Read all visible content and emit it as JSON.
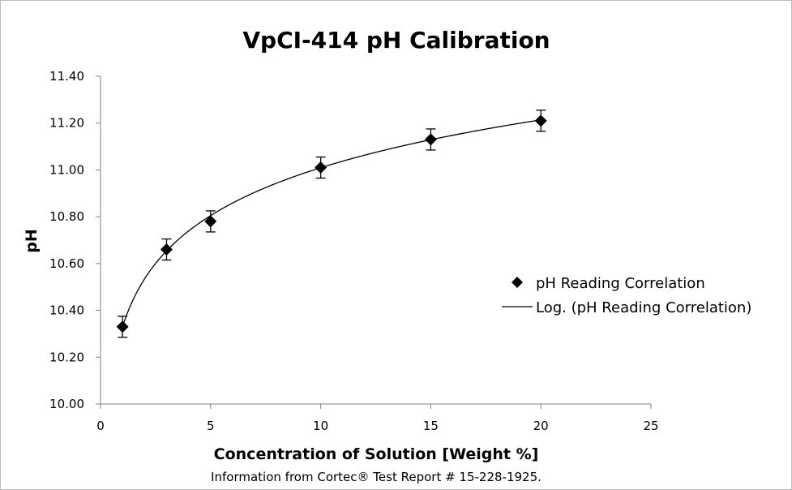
{
  "chart_data": {
    "type": "scatter",
    "title": "VpCI-414 pH Calibration",
    "xlabel": "Concentration of Solution [Weight %]",
    "ylabel": "pH",
    "xlim": [
      0,
      25
    ],
    "ylim": [
      10.0,
      11.4
    ],
    "x_ticks": [
      0,
      5,
      10,
      15,
      20,
      25
    ],
    "x_tick_labels": [
      "0",
      "5",
      "10",
      "15",
      "20",
      "25"
    ],
    "y_ticks": [
      10.0,
      10.2,
      10.4,
      10.6,
      10.8,
      11.0,
      11.2,
      11.4
    ],
    "y_tick_labels": [
      "10.00",
      "10.20",
      "10.40",
      "10.60",
      "10.80",
      "11.00",
      "11.20",
      "11.40"
    ],
    "grid": false,
    "legend_position": "right",
    "series": [
      {
        "name": "pH Reading Correlation",
        "marker": "diamond",
        "color": "#000000",
        "x": [
          1,
          3,
          5,
          10,
          15,
          20
        ],
        "y": [
          10.33,
          10.66,
          10.78,
          11.01,
          11.13,
          11.21
        ],
        "error": [
          0.045,
          0.045,
          0.045,
          0.045,
          0.045,
          0.045
        ]
      }
    ],
    "trendline": {
      "name": "Log. (pH Reading Correlation)",
      "type": "logarithmic",
      "color": "#000000",
      "intercept": 10.33,
      "slope": 0.295,
      "x_range": [
        1,
        20
      ]
    },
    "footnote": "Information from  Cortec® Test Report # 15-228-1925."
  }
}
